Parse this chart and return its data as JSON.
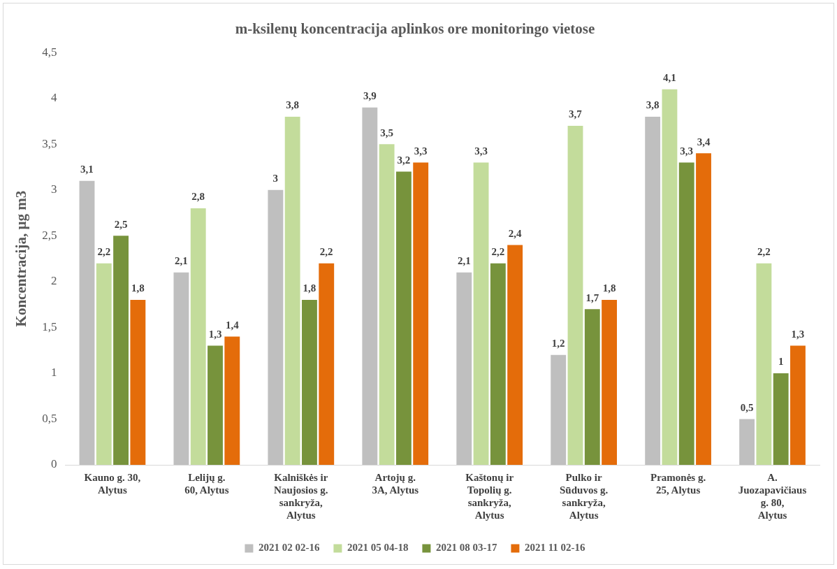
{
  "chart_data": {
    "type": "bar",
    "title": "m-ksilenų koncentracija aplinkos ore monitoringo vietose",
    "ylabel": "Koncentracija, µg m3",
    "categories": [
      "Kauno g. 30, Alytus",
      "Lelijų g. 60, Alytus",
      "Kalniškės ir Naujosios g. sankryža, Alytus",
      "Artojų g. 3A, Alytus",
      "Kaštonų ir Topolių g. sankryža, Alytus",
      "Pulko ir Sūduvos g. sankryža, Alytus",
      "Pramonės g. 25, Alytus",
      "A. Juozapavičiaus g. 80, Alytus"
    ],
    "series": [
      {
        "name": "2021 02 02-16",
        "color": "#bfbfbf",
        "values": [
          3.1,
          2.1,
          3,
          3.9,
          2.1,
          1.2,
          3.8,
          0.5
        ],
        "value_labels": [
          "3,1",
          "2,1",
          "3",
          "3,9",
          "2,1",
          "1,2",
          "3,8",
          "0,5"
        ]
      },
      {
        "name": "2021 05 04-18",
        "color": "#c3dc9b",
        "values": [
          2.2,
          2.8,
          3.8,
          3.5,
          3.3,
          3.7,
          4.1,
          2.2
        ],
        "value_labels": [
          "2,2",
          "2,8",
          "3,8",
          "3,5",
          "3,3",
          "3,7",
          "4,1",
          "2,2"
        ]
      },
      {
        "name": "2021 08 03-17",
        "color": "#77933c",
        "values": [
          2.5,
          1.3,
          1.8,
          3.2,
          2.2,
          1.7,
          3.3,
          1
        ],
        "value_labels": [
          "2,5",
          "1,3",
          "1,8",
          "3,2",
          "2,2",
          "1,7",
          "3,3",
          "1"
        ]
      },
      {
        "name": "2021 11 02-16",
        "color": "#e46c0a",
        "values": [
          1.8,
          1.4,
          2.2,
          3.3,
          2.4,
          1.8,
          3.4,
          1.3
        ],
        "value_labels": [
          "1,8",
          "1,4",
          "2,2",
          "3,3",
          "2,4",
          "1,8",
          "3,4",
          "1,3"
        ]
      }
    ],
    "ylim": [
      0,
      4.5
    ],
    "yticks": [
      0,
      {
        "value": 0.5,
        "label": "0,5"
      },
      1,
      {
        "value": 1.5,
        "label": "1,5"
      },
      2,
      {
        "value": 2.5,
        "label": "2,5"
      },
      3,
      {
        "value": 3.5,
        "label": "3,5"
      },
      4,
      {
        "value": 4.5,
        "label": "4,5"
      }
    ],
    "grid": false,
    "legend": "bottom"
  }
}
